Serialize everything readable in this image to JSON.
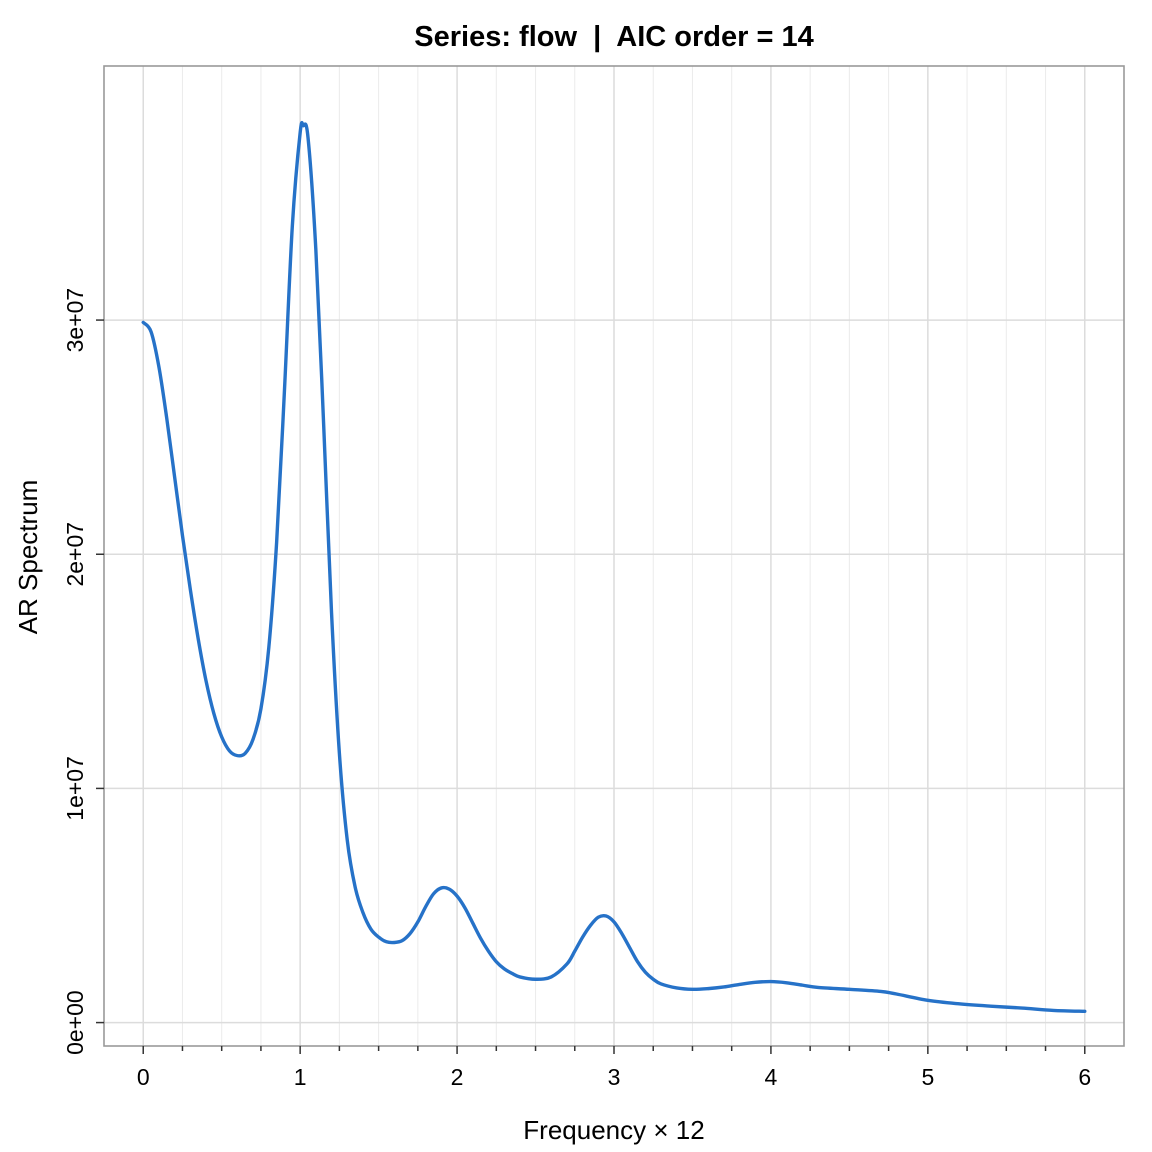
{
  "chart_data": {
    "type": "line",
    "title": "Series: flow  |  AIC order = 14",
    "xlabel": "Frequency × 12",
    "ylabel": "AR Spectrum",
    "xlim": [
      -0.25,
      6.25
    ],
    "ylim": [
      -1000000,
      40850000
    ],
    "x_ticks": [
      0,
      1,
      2,
      3,
      4,
      5,
      6
    ],
    "x_tick_labels": [
      "0",
      "1",
      "2",
      "3",
      "4",
      "5",
      "6"
    ],
    "y_ticks": [
      0,
      10000000,
      20000000,
      30000000
    ],
    "y_tick_labels": [
      "0e+00",
      "1e+07",
      "2e+07",
      "3e+07"
    ],
    "grid": true,
    "line_color": "#2672c8",
    "series": [
      {
        "x": [
          0,
          0.05,
          0.1,
          0.15,
          0.2,
          0.25,
          0.3,
          0.35,
          0.4,
          0.45,
          0.5,
          0.55,
          0.6,
          0.65,
          0.7,
          0.75,
          0.8,
          0.85,
          0.9,
          0.95,
          1.0,
          1.02,
          1.05,
          1.1,
          1.15,
          1.2,
          1.25,
          1.3,
          1.35,
          1.4,
          1.45,
          1.5,
          1.55,
          1.6,
          1.65,
          1.7,
          1.75,
          1.8,
          1.85,
          1.9,
          1.95,
          2.0,
          2.05,
          2.1,
          2.15,
          2.2,
          2.25,
          2.3,
          2.35,
          2.4,
          2.5,
          2.6,
          2.7,
          2.75,
          2.8,
          2.85,
          2.9,
          2.95,
          3.0,
          3.05,
          3.1,
          3.15,
          3.2,
          3.25,
          3.3,
          3.4,
          3.5,
          3.6,
          3.7,
          3.8,
          3.9,
          4.0,
          4.1,
          4.2,
          4.3,
          4.5,
          4.7,
          4.8,
          5.0,
          5.2,
          5.4,
          5.6,
          5.8,
          6.0
        ],
        "y": [
          29900000,
          29500000,
          28000000,
          25800000,
          23300000,
          20800000,
          18500000,
          16400000,
          14600000,
          13200000,
          12200000,
          11600000,
          11400000,
          11500000,
          12100000,
          13400000,
          16000000,
          20500000,
          27000000,
          34000000,
          38000000,
          38300000,
          37800000,
          33000000,
          25500000,
          17500000,
          11500000,
          7800000,
          5800000,
          4700000,
          4000000,
          3650000,
          3450000,
          3420000,
          3500000,
          3800000,
          4300000,
          4950000,
          5500000,
          5750000,
          5700000,
          5400000,
          4900000,
          4250000,
          3600000,
          3050000,
          2600000,
          2300000,
          2100000,
          1950000,
          1850000,
          1950000,
          2500000,
          3050000,
          3650000,
          4150000,
          4500000,
          4550000,
          4300000,
          3800000,
          3200000,
          2600000,
          2150000,
          1850000,
          1650000,
          1480000,
          1420000,
          1450000,
          1520000,
          1630000,
          1720000,
          1750000,
          1700000,
          1600000,
          1500000,
          1420000,
          1330000,
          1220000,
          950000,
          800000,
          700000,
          620000,
          520000,
          480000
        ]
      }
    ]
  }
}
